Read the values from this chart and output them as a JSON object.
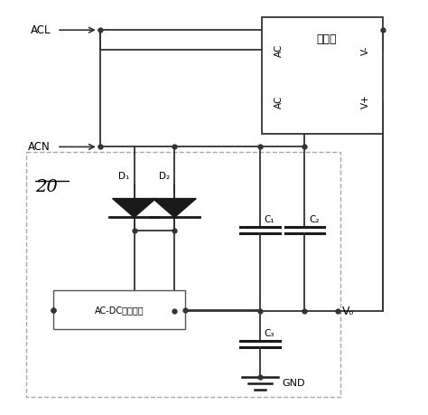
{
  "figsize": [
    4.74,
    4.59
  ],
  "dpi": 100,
  "bg_color": "#ffffff",
  "bridge_label": "整流桥",
  "D1_label": "D₁",
  "D2_label": "D₂",
  "C1_label": "C₁",
  "C2_label": "C₂",
  "C3_label": "C₃",
  "Vo_label": "Vₒ",
  "GND_label": "GND",
  "ACDC_label": "AC-DC转换单元",
  "label_20": "20",
  "ACL_label": "ACL",
  "ACN_label": "ACN"
}
